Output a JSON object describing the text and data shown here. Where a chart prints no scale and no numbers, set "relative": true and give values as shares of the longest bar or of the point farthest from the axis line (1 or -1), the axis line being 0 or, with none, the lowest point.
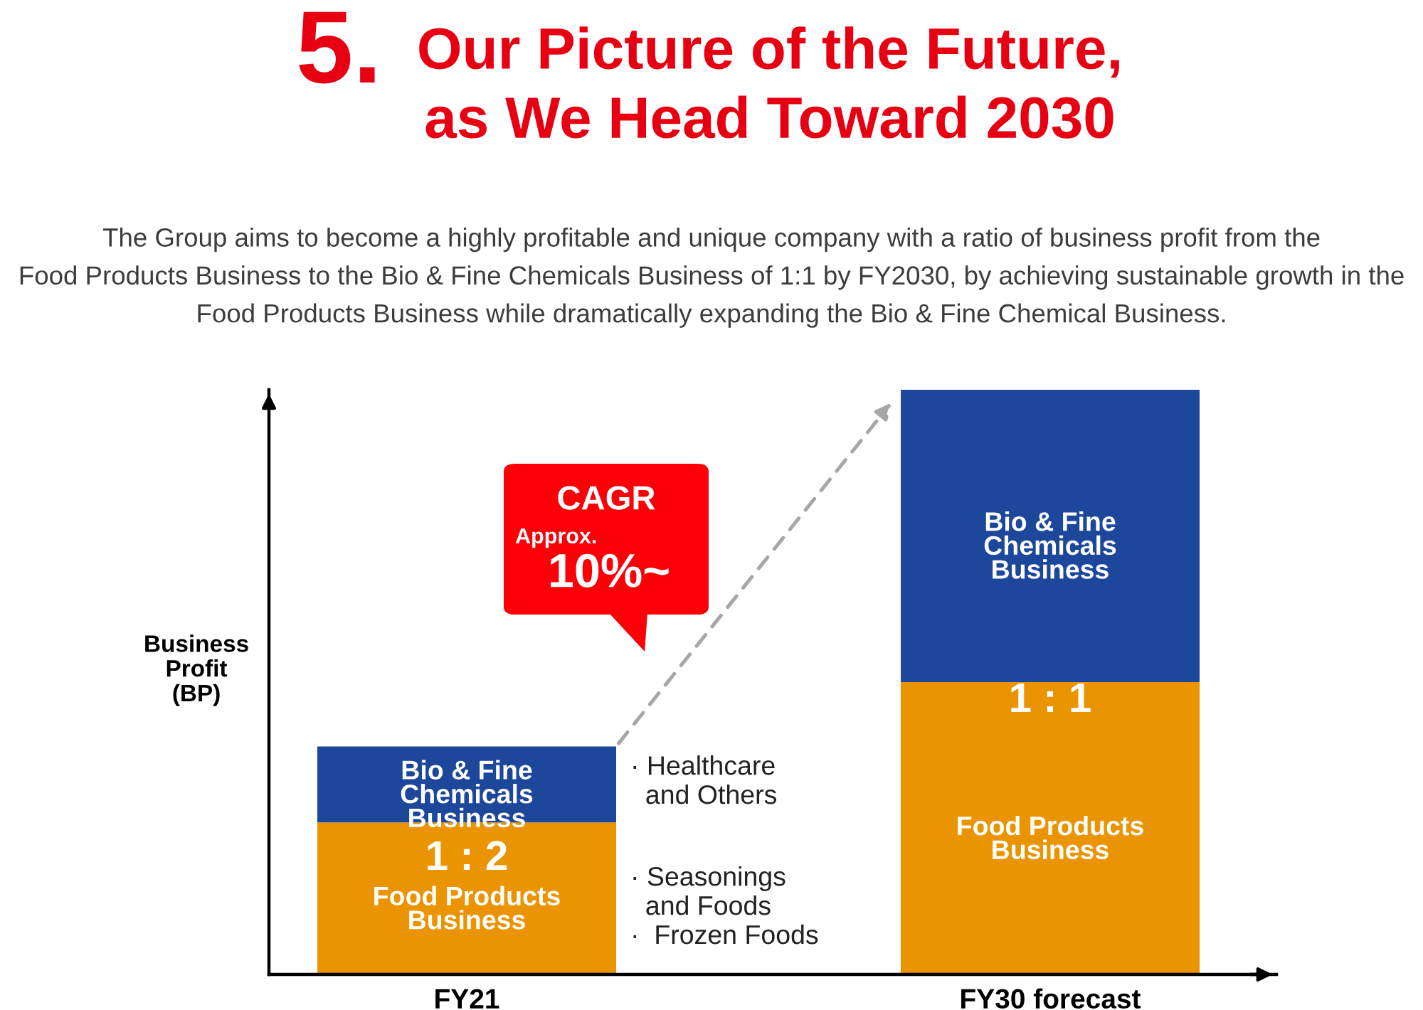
{
  "chart_data": {
    "type": "bar",
    "title": "5. Our Picture of the Future,\nas We Head Toward 2030",
    "subtitle": "The Group aims to become a highly profitable and unique company with a ratio of business profit from the\nFood Products Business to the Bio & Fine Chemicals Business of 1:1 by FY2030, by achieving sustainable growth in the\nFood Products Business while dramatically expanding the Bio & Fine Chemical Business.",
    "ylabel": "Business\nProfit\n(BP)",
    "categories": [
      "FY21",
      "FY30 forecast"
    ],
    "stacked": true,
    "relative": true,
    "series": [
      {
        "name": "Food Products\nBusiness",
        "color": "#e99400",
        "values": [
          0.26,
          0.5
        ]
      },
      {
        "name": "Bio & Fine\nChemicals\nBusiness",
        "color": "#1d479b",
        "values": [
          0.13,
          0.5
        ]
      }
    ],
    "annotations": [
      "1 : 2",
      "1 : 1",
      "CAGR\nApprox.\n10%~",
      "· Healthcare\n  and Others",
      "· Seasonings\n  and Foods\n·  Frozen Foods"
    ]
  }
}
